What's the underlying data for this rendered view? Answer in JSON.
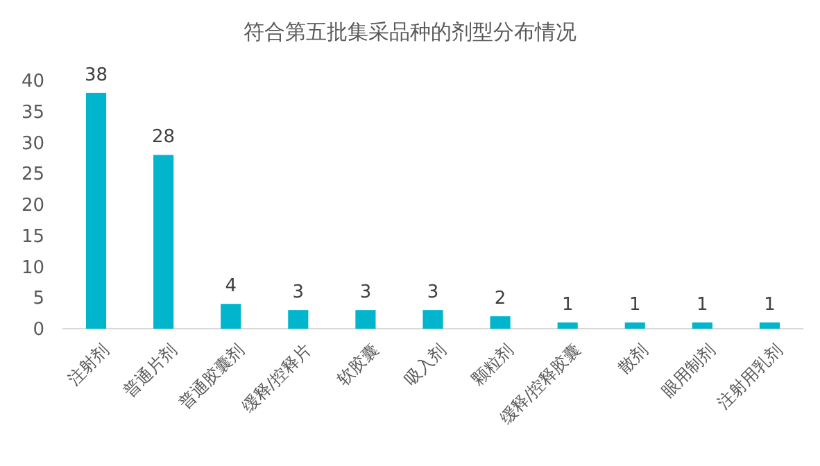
{
  "chart_data": {
    "type": "bar",
    "title": "符合第五批集采品种的剂型分布情况",
    "categories": [
      "注射剂",
      "普通片剂",
      "普通胶囊剂",
      "缓释/控释片",
      "软胶囊",
      "吸入剂",
      "颗粒剂",
      "缓释/控释胶囊",
      "散剂",
      "眼用制剂",
      "注射用乳剂"
    ],
    "values": [
      38,
      28,
      4,
      3,
      3,
      3,
      2,
      1,
      1,
      1,
      1
    ],
    "color": "#00b5cc",
    "ylim": [
      0,
      40
    ],
    "yticks": [
      0,
      5,
      10,
      15,
      20,
      25,
      30,
      35,
      40
    ],
    "grid": false,
    "data_labels": true
  }
}
